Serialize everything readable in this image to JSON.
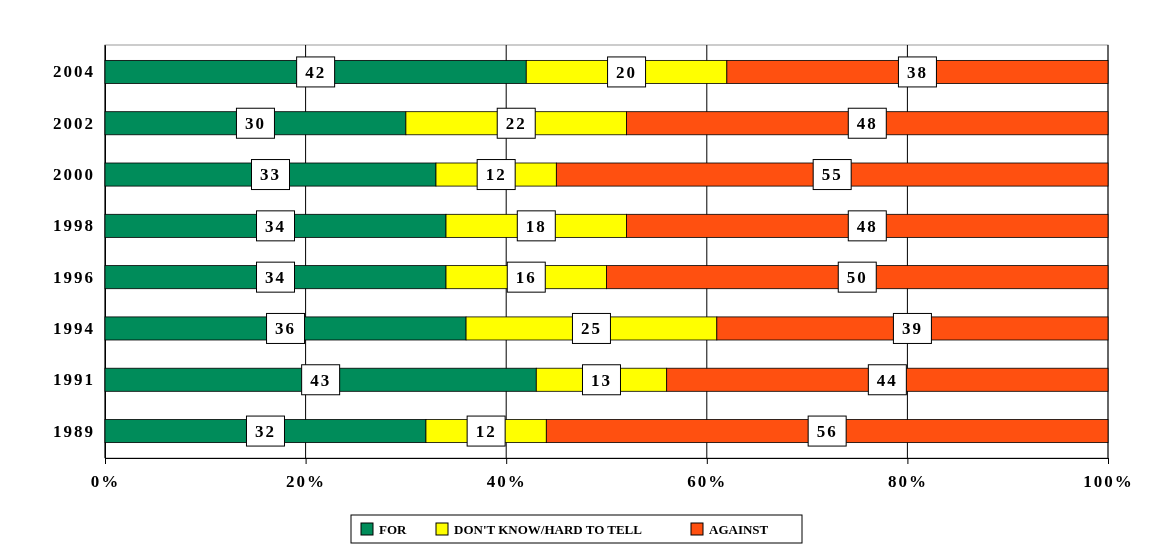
{
  "chart_data": {
    "type": "bar",
    "orientation": "horizontal",
    "stacked": true,
    "categories": [
      "2004",
      "2002",
      "2000",
      "1998",
      "1996",
      "1994",
      "1991",
      "1989"
    ],
    "series": [
      {
        "name": "FOR",
        "color": "#008c5a",
        "values": [
          42,
          30,
          33,
          34,
          34,
          36,
          43,
          32
        ]
      },
      {
        "name": "DON'T KNOW/HARD TO TELL",
        "color": "#ffff00",
        "values": [
          20,
          22,
          12,
          18,
          16,
          25,
          13,
          12
        ]
      },
      {
        "name": "AGAINST",
        "color": "#ff5010",
        "values": [
          38,
          48,
          55,
          48,
          50,
          39,
          44,
          56
        ]
      }
    ],
    "xlim": [
      0,
      100
    ],
    "xticks": [
      {
        "value": 0,
        "label": "0%"
      },
      {
        "value": 20,
        "label": "20%"
      },
      {
        "value": 40,
        "label": "40%"
      },
      {
        "value": 60,
        "label": "60%"
      },
      {
        "value": 80,
        "label": "80%"
      },
      {
        "value": 100,
        "label": "100%"
      }
    ],
    "grid": "x",
    "legend": "bottom",
    "data_labels": true
  }
}
